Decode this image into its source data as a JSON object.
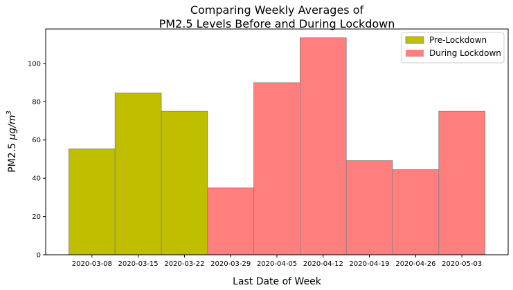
{
  "chart_data": {
    "type": "bar",
    "title_line1": "Comparing Weekly Averages of",
    "title_line2": "PM2.5 Levels Before and During Lockdown",
    "xlabel": "Last Date of Week",
    "ylabel_prefix": "PM2.5 ",
    "ylabel_unit_base": "μg/m",
    "ylabel_unit_exp": "3",
    "categories": [
      "2020-03-08",
      "2020-03-15",
      "2020-03-22",
      "2020-03-29",
      "2020-04-05",
      "2020-04-12",
      "2020-04-19",
      "2020-04-26",
      "2020-05-03"
    ],
    "series": [
      {
        "name": "Pre-Lockdown",
        "color": "#bfbf00",
        "values": [
          55.3,
          84.5,
          75.0,
          null,
          null,
          null,
          null,
          null,
          null
        ]
      },
      {
        "name": "During Lockdown",
        "color": "#ff7f7f",
        "values": [
          null,
          null,
          null,
          35.0,
          89.9,
          113.4,
          49.2,
          44.5,
          75.0
        ]
      }
    ],
    "ylim": [
      0,
      118
    ],
    "yticks": [
      0,
      20,
      40,
      60,
      80,
      100
    ],
    "grid": false,
    "legend_position": "top-right"
  }
}
